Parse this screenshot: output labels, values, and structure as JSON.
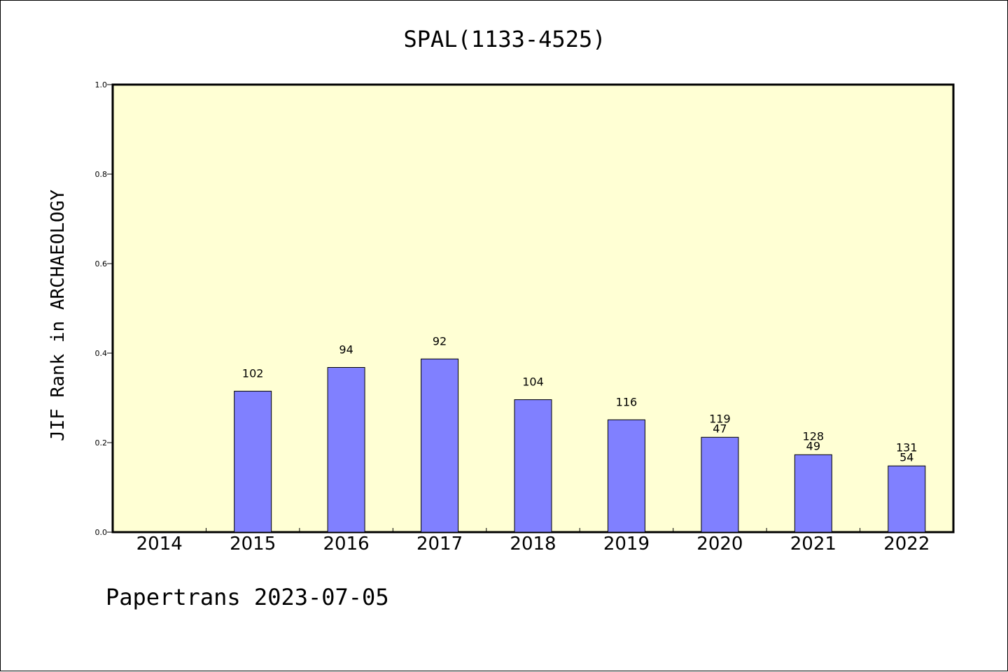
{
  "chart_data": {
    "type": "bar",
    "title": "SPAL(1133-4525)",
    "ylabel": "JIF Rank in ARCHAEOLOGY",
    "xlabel": "",
    "ylim": [
      0,
      1.0
    ],
    "yticks": [
      "0.0",
      "0.2",
      "0.4",
      "0.6",
      "0.8",
      "1.0"
    ],
    "categories": [
      "2014",
      "2015",
      "2016",
      "2017",
      "2018",
      "2019",
      "2020",
      "2021",
      "2022"
    ],
    "values": [
      null,
      0.315,
      0.368,
      0.387,
      0.296,
      0.251,
      0.212,
      0.173,
      0.148
    ],
    "rank_labels": [
      "",
      "102",
      "94",
      "92",
      "104",
      "116",
      "119",
      "128",
      "131"
    ],
    "sub_labels": [
      "",
      "",
      "",
      "",
      "",
      "",
      "47",
      "49",
      "54"
    ],
    "grid": false,
    "legend": "none",
    "colors": {
      "plot_background": "#FFFFD4",
      "bar_fill": "#8080FF",
      "bar_stroke": "#000000"
    }
  },
  "footer": {
    "text": "Papertrans 2023-07-05"
  }
}
